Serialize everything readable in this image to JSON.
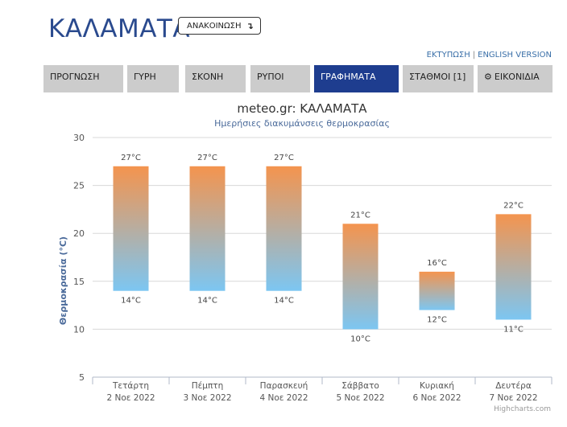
{
  "header": {
    "city": "ΚΑΛΑΜΑΤΑ",
    "announcement_label": "ΑΝΑΚΟΙΝΩΣΗ",
    "announcement_icon": "arrow-turn-down-icon"
  },
  "links": {
    "print": "ΕΚΤΥΠΩΣΗ",
    "separator": "|",
    "english": "ENGLISH VERSION"
  },
  "tabs": [
    {
      "label": "ΠΡΟΓΝΩΣΗ",
      "active": false
    },
    {
      "label": "ΓΥΡΗ",
      "active": false
    },
    {
      "label": "ΣΚΟΝΗ",
      "active": false
    },
    {
      "label": "ΡΥΠΟΙ",
      "active": false
    },
    {
      "label": "ΓΡΑΦΗΜΑΤΑ",
      "active": true
    },
    {
      "label": "ΣΤΑΘΜΟΙ [1]",
      "active": false
    },
    {
      "label": "ΕΙΚΟΝΙΔΙΑ",
      "active": false,
      "icon": "gear-icon"
    }
  ],
  "colors": {
    "brand": "#2a4a8e",
    "tab_active": "#1e3d8f",
    "tab_inactive": "#cccccc",
    "range_top": "#f4944e",
    "range_bottom": "#7cc6f2"
  },
  "chart_data": {
    "type": "columnrange",
    "title": "meteo.gr: ΚΑΛΑΜΑΤΑ",
    "subtitle": "Ημερήσιες διακυμάνσεις θερμοκρασίας",
    "ylabel": "Θερμοκρασία (°C)",
    "ylim": [
      5,
      30
    ],
    "yticks": [
      5,
      10,
      15,
      20,
      25,
      30
    ],
    "grid": true,
    "categories": [
      {
        "day": "Τετάρτη",
        "date": "2 Νοε 2022"
      },
      {
        "day": "Πέμπτη",
        "date": "3 Νοε 2022"
      },
      {
        "day": "Παρασκευή",
        "date": "4 Νοε 2022"
      },
      {
        "day": "Σάββατο",
        "date": "5 Νοε 2022"
      },
      {
        "day": "Κυριακή",
        "date": "6 Νοε 2022"
      },
      {
        "day": "Δευτέρα",
        "date": "7 Νοε 2022"
      }
    ],
    "series": [
      {
        "low": [
          14,
          14,
          14,
          10,
          12,
          11
        ],
        "high": [
          27,
          27,
          27,
          21,
          16,
          22
        ]
      }
    ],
    "unit": "°C",
    "credits": "Highcharts.com"
  }
}
